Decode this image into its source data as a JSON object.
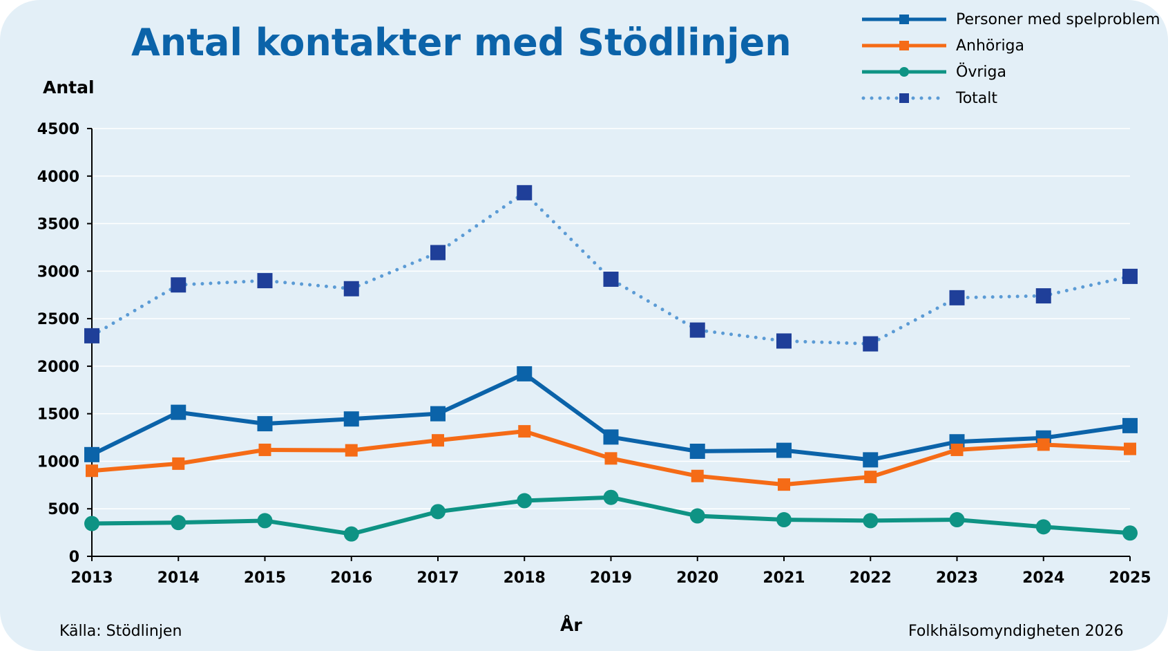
{
  "chart_data": {
    "type": "line",
    "title": "Antal kontakter med Stödlinjen",
    "xlabel": "År",
    "ylabel": "Antal",
    "ylim": [
      0,
      4500
    ],
    "yticks": [
      "0",
      "500",
      "1000",
      "1500",
      "2000",
      "2500",
      "3000",
      "3500",
      "4000",
      "4500"
    ],
    "categories": [
      "2013",
      "2014",
      "2015",
      "2016",
      "2017",
      "2018",
      "2019",
      "2020",
      "2021",
      "2022",
      "2023",
      "2024",
      "2025"
    ],
    "grid": "horizontal",
    "legend_position": "top-right",
    "series": [
      {
        "name": "Personer med spelproblem",
        "color": "#0b63a9",
        "line_style": "solid",
        "marker": "square",
        "values": [
          1070,
          1515,
          1395,
          1445,
          1500,
          1920,
          1255,
          1105,
          1115,
          1015,
          1205,
          1245,
          1375
        ]
      },
      {
        "name": "Anhöriga",
        "color": "#f56b16",
        "line_style": "solid",
        "marker": "square",
        "values": [
          900,
          975,
          1120,
          1115,
          1220,
          1315,
          1030,
          845,
          755,
          835,
          1120,
          1175,
          1130
        ]
      },
      {
        "name": "Övriga",
        "color": "#0e9384",
        "line_style": "solid",
        "marker": "circle",
        "values": [
          345,
          355,
          375,
          235,
          470,
          585,
          620,
          425,
          385,
          375,
          385,
          310,
          245
        ]
      },
      {
        "name": "Totalt",
        "color": "#5b9bd5",
        "marker_color": "#1f3f99",
        "line_style": "dotted",
        "marker": "square",
        "values": [
          2320,
          2855,
          2900,
          2815,
          3195,
          3825,
          2915,
          2380,
          2265,
          2235,
          2720,
          2740,
          2945
        ]
      }
    ]
  },
  "source_note": "Källa: Stödlinjen",
  "credit_note": "Folkhälsomyndigheten 2026"
}
